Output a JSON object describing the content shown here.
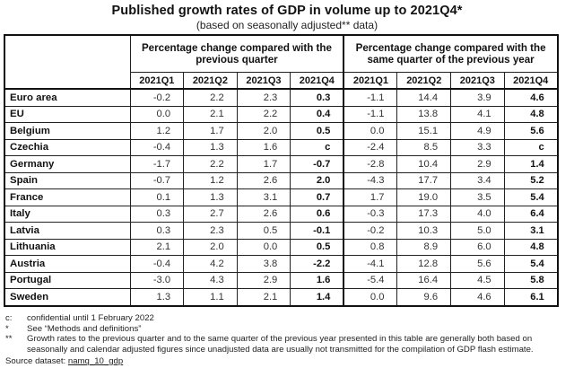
{
  "title": "Published growth rates of GDP in volume up to 2021Q4*",
  "subtitle": "(based on seasonally adjusted** data)",
  "table": {
    "groups": [
      "Percentage change compared with the previous quarter",
      "Percentage change compared with the same quarter of the previous year"
    ],
    "quarters": [
      "2021Q1",
      "2021Q2",
      "2021Q3",
      "2021Q4",
      "2021Q1",
      "2021Q2",
      "2021Q3",
      "2021Q4"
    ],
    "rows": [
      {
        "label": "Euro area",
        "values": [
          "-0.2",
          "2.2",
          "2.3",
          "0.3",
          "-1.1",
          "14.4",
          "3.9",
          "4.6"
        ]
      },
      {
        "label": "EU",
        "values": [
          "0.0",
          "2.1",
          "2.2",
          "0.4",
          "-1.1",
          "13.8",
          "4.1",
          "4.8"
        ]
      },
      {
        "label": "Belgium",
        "values": [
          "1.2",
          "1.7",
          "2.0",
          "0.5",
          "0.0",
          "15.1",
          "4.9",
          "5.6"
        ]
      },
      {
        "label": "Czechia",
        "values": [
          "-0.4",
          "1.3",
          "1.6",
          "c",
          "-2.4",
          "8.5",
          "3.3",
          "c"
        ]
      },
      {
        "label": "Germany",
        "values": [
          "-1.7",
          "2.2",
          "1.7",
          "-0.7",
          "-2.8",
          "10.4",
          "2.9",
          "1.4"
        ]
      },
      {
        "label": "Spain",
        "values": [
          "-0.7",
          "1.2",
          "2.6",
          "2.0",
          "-4.3",
          "17.7",
          "3.4",
          "5.2"
        ]
      },
      {
        "label": "France",
        "values": [
          "0.1",
          "1.3",
          "3.1",
          "0.7",
          "1.7",
          "19.0",
          "3.5",
          "5.4"
        ]
      },
      {
        "label": "Italy",
        "values": [
          "0.3",
          "2.7",
          "2.6",
          "0.6",
          "-0.3",
          "17.3",
          "4.0",
          "6.4"
        ]
      },
      {
        "label": "Latvia",
        "values": [
          "0.3",
          "2.3",
          "0.5",
          "-0.1",
          "-0.2",
          "10.3",
          "5.0",
          "3.1"
        ]
      },
      {
        "label": "Lithuania",
        "values": [
          "2.1",
          "2.0",
          "0.0",
          "0.5",
          "0.8",
          "8.9",
          "6.0",
          "4.8"
        ]
      },
      {
        "label": "Austria",
        "values": [
          "-0.4",
          "4.2",
          "3.8",
          "-2.2",
          "-4.1",
          "12.8",
          "5.6",
          "5.4"
        ]
      },
      {
        "label": "Portugal",
        "values": [
          "-3.0",
          "4.3",
          "2.9",
          "1.6",
          "-5.4",
          "16.4",
          "4.5",
          "5.8"
        ]
      },
      {
        "label": "Sweden",
        "values": [
          "1.3",
          "1.1",
          "2.1",
          "1.4",
          "0.0",
          "9.6",
          "4.6",
          "6.1"
        ]
      }
    ]
  },
  "notes": [
    {
      "key": "c:",
      "text": "confidential until 1 February 2022"
    },
    {
      "key": "*",
      "text": "See “Methods and definitions”"
    },
    {
      "key": "**",
      "text": "Growth rates to the previous quarter and to the same quarter of the previous year presented in this table are generally both based on seasonally and calendar adjusted figures since unadjusted data are usually not transmitted for the compilation of GDP flash estimate."
    }
  ],
  "source": {
    "label": "Source dataset:",
    "link": "namq_10_gdp"
  }
}
